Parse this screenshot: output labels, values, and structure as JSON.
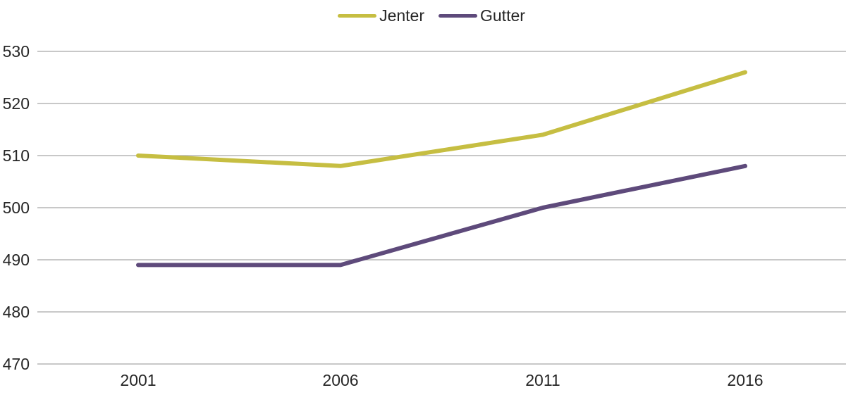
{
  "chart": {
    "background": "#ffffff",
    "text_color": "#262626",
    "grid_color": "#a6a6a6"
  },
  "chart_data": {
    "type": "line",
    "categories": [
      "2001",
      "2006",
      "2011",
      "2016"
    ],
    "series": [
      {
        "name": "Jenter",
        "color": "#c6be42",
        "values": [
          510,
          508,
          514,
          526
        ]
      },
      {
        "name": "Gutter",
        "color": "#5e4a7b",
        "values": [
          489,
          489,
          500,
          508
        ]
      }
    ],
    "ylim": [
      470,
      530
    ],
    "yticks": [
      470,
      480,
      490,
      500,
      510,
      520,
      530
    ],
    "ytick_step": 10,
    "grid": true,
    "legend_position": "top",
    "title": "",
    "xlabel": "",
    "ylabel": ""
  }
}
